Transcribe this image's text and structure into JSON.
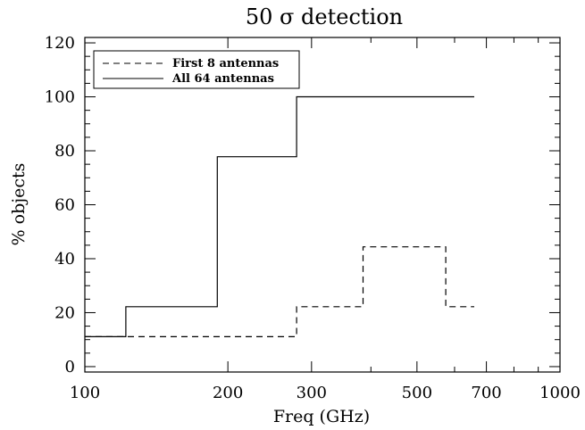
{
  "chart_data": {
    "type": "line",
    "title": "50 σ detection",
    "xlabel": "Freq (GHz)",
    "ylabel": "% objects",
    "xscale": "log",
    "xlim": [
      100,
      1000
    ],
    "ylim": [
      -2,
      122
    ],
    "x_ticks": [
      100,
      200,
      300,
      500,
      700,
      1000
    ],
    "x_tick_labels": [
      "100",
      "200",
      "300",
      "500",
      "700",
      "1000"
    ],
    "y_ticks": [
      0,
      20,
      40,
      60,
      80,
      100,
      120
    ],
    "y_tick_labels": [
      "0",
      "20",
      "40",
      "60",
      "80",
      "100",
      "120"
    ],
    "legend_position": "top-left",
    "series": [
      {
        "name": "First 8 antennas",
        "style": "dashed",
        "color": "#000000",
        "x": [
          100,
          279,
          279,
          385,
          385,
          575,
          575,
          660
        ],
        "y": [
          11.1,
          11.1,
          22.2,
          22.2,
          44.4,
          44.4,
          22.2,
          22.2
        ]
      },
      {
        "name": "All 64 antennas",
        "style": "solid",
        "color": "#000000",
        "x": [
          100,
          122,
          122,
          190,
          190,
          279,
          279,
          660
        ],
        "y": [
          11.1,
          11.1,
          22.2,
          22.2,
          77.8,
          77.8,
          100,
          100
        ]
      }
    ]
  }
}
